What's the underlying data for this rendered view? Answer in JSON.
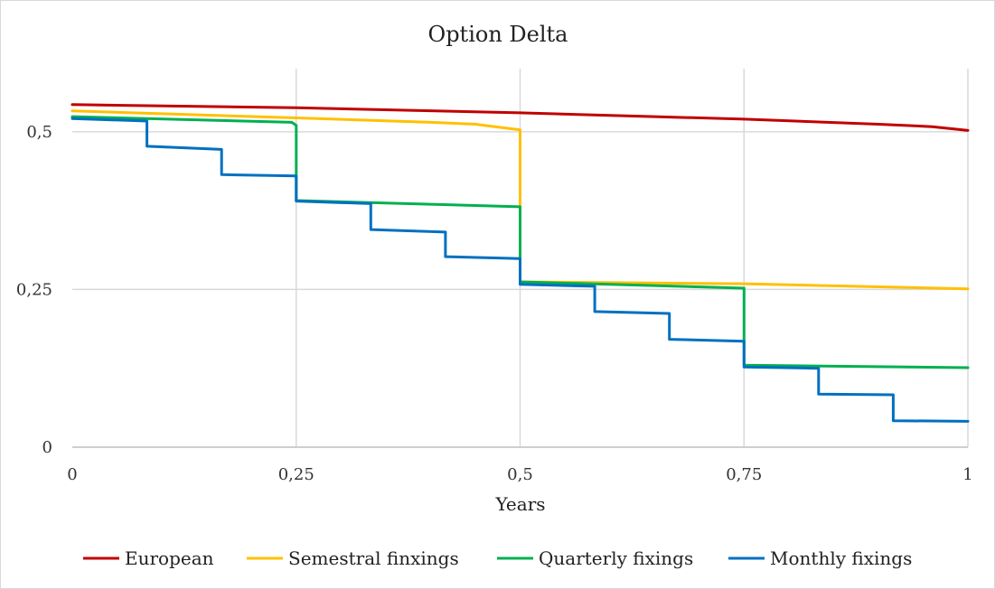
{
  "chart_data": {
    "type": "line",
    "title": "Option Delta",
    "xlabel": "Years",
    "ylabel": "",
    "xlim": [
      0,
      1
    ],
    "ylim": [
      0,
      0.6
    ],
    "x_ticks": [
      {
        "value": 0,
        "label": "0"
      },
      {
        "value": 0.25,
        "label": "0,25"
      },
      {
        "value": 0.5,
        "label": "0,5"
      },
      {
        "value": 0.75,
        "label": "0,75"
      },
      {
        "value": 1,
        "label": "1"
      }
    ],
    "y_ticks": [
      {
        "value": 0,
        "label": "0"
      },
      {
        "value": 0.25,
        "label": "0,25"
      },
      {
        "value": 0.5,
        "label": "0,5"
      }
    ],
    "grid": {
      "vertical": true,
      "horizontal": true
    },
    "legend_position": "bottom",
    "series": [
      {
        "name": "European",
        "color": "#c00000",
        "points": [
          [
            0,
            0.543
          ],
          [
            0.25,
            0.538
          ],
          [
            0.5,
            0.53
          ],
          [
            0.75,
            0.52
          ],
          [
            0.9,
            0.512
          ],
          [
            0.96,
            0.508
          ],
          [
            1,
            0.502
          ]
        ]
      },
      {
        "name": "Semestral finxings",
        "color": "#ffc000",
        "points": [
          [
            0,
            0.533
          ],
          [
            0.25,
            0.522
          ],
          [
            0.4,
            0.515
          ],
          [
            0.45,
            0.512
          ],
          [
            0.5,
            0.503
          ],
          [
            0.5,
            0.262
          ],
          [
            0.75,
            0.259
          ],
          [
            1,
            0.251
          ]
        ]
      },
      {
        "name": "Quarterly fixings",
        "color": "#00b050",
        "points": [
          [
            0,
            0.524
          ],
          [
            0.245,
            0.515
          ],
          [
            0.25,
            0.51
          ],
          [
            0.25,
            0.391
          ],
          [
            0.5,
            0.381
          ],
          [
            0.5,
            0.262
          ],
          [
            0.75,
            0.252
          ],
          [
            0.75,
            0.13
          ],
          [
            1,
            0.126
          ]
        ]
      },
      {
        "name": "Monthly fixings",
        "color": "#0070c0",
        "points": [
          [
            0,
            0.521
          ],
          [
            0.0833,
            0.517
          ],
          [
            0.0833,
            0.477
          ],
          [
            0.1667,
            0.472
          ],
          [
            0.1667,
            0.432
          ],
          [
            0.25,
            0.43
          ],
          [
            0.25,
            0.39
          ],
          [
            0.3333,
            0.386
          ],
          [
            0.3333,
            0.345
          ],
          [
            0.4167,
            0.341
          ],
          [
            0.4167,
            0.302
          ],
          [
            0.5,
            0.299
          ],
          [
            0.5,
            0.258
          ],
          [
            0.5833,
            0.255
          ],
          [
            0.5833,
            0.215
          ],
          [
            0.6667,
            0.212
          ],
          [
            0.6667,
            0.171
          ],
          [
            0.75,
            0.168
          ],
          [
            0.75,
            0.127
          ],
          [
            0.8333,
            0.125
          ],
          [
            0.8333,
            0.084
          ],
          [
            0.9167,
            0.083
          ],
          [
            0.9167,
            0.042
          ],
          [
            1,
            0.041
          ]
        ]
      }
    ]
  }
}
